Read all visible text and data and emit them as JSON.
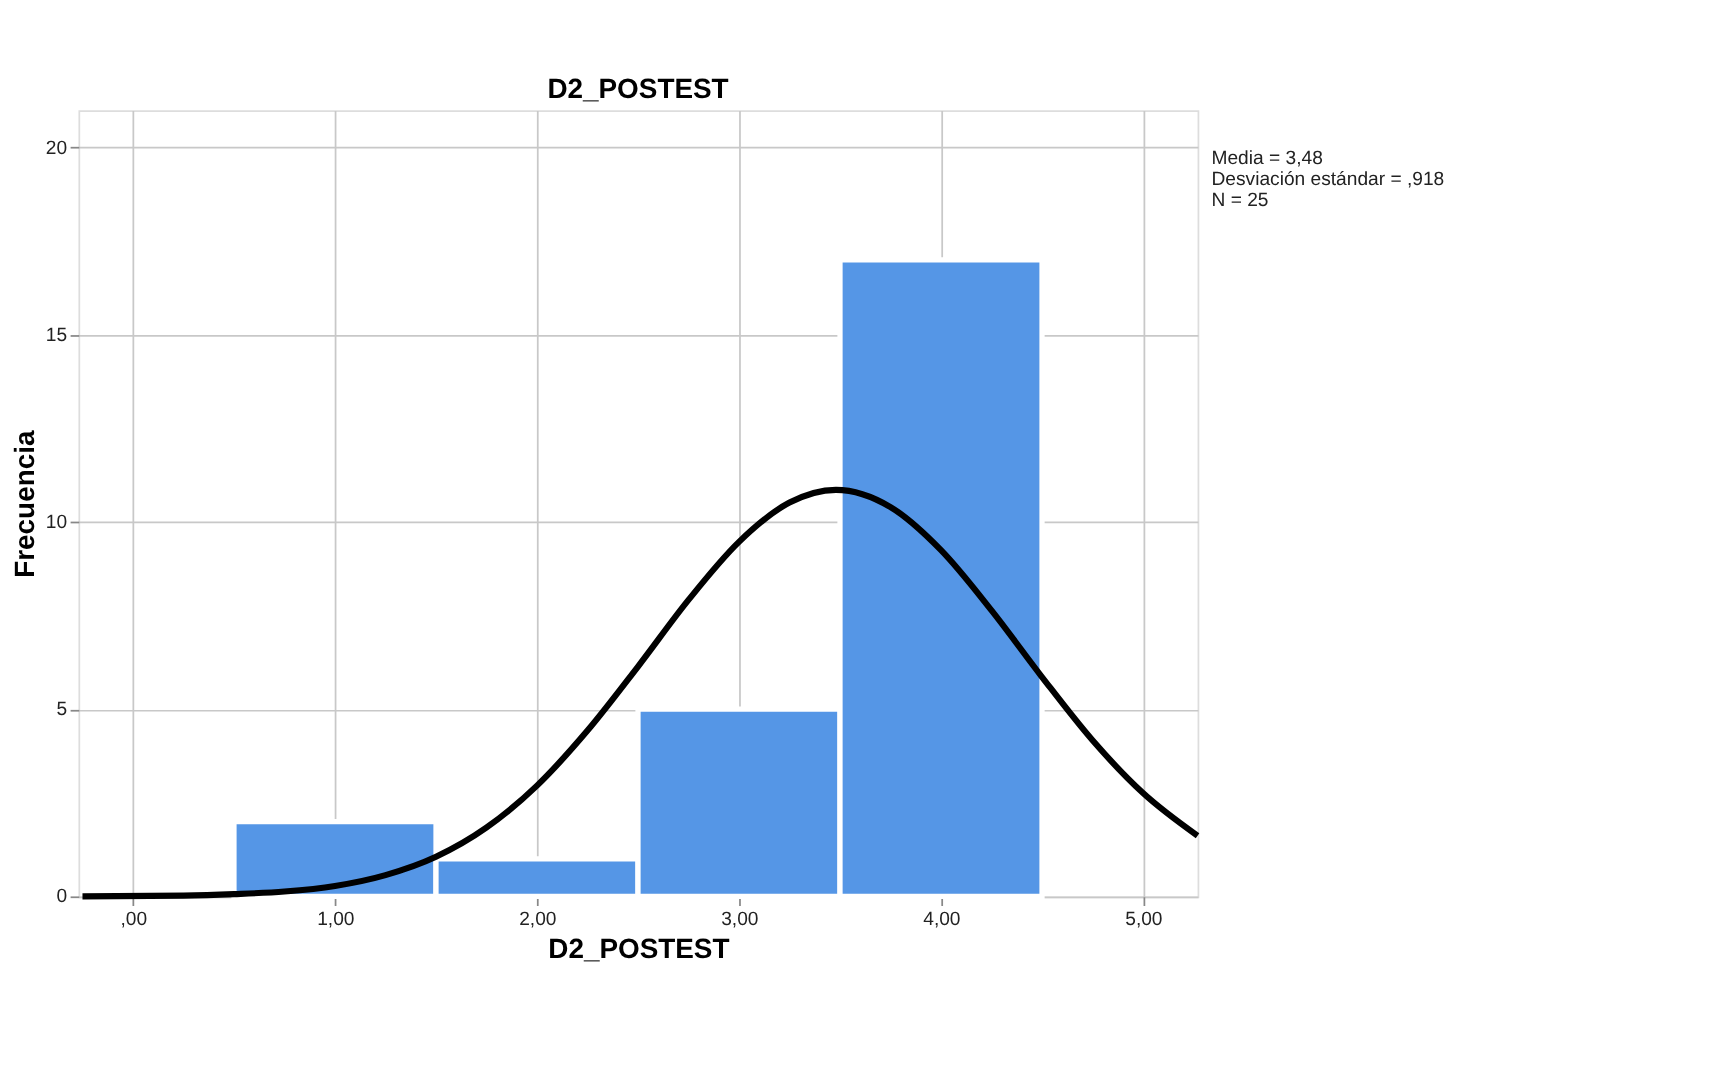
{
  "chart_data": {
    "type": "histogram",
    "title": "D2_POSTEST",
    "xlabel": "D2_POSTEST",
    "ylabel": "Frecuencia",
    "bins": [
      0.5,
      1.5,
      2.5,
      3.5,
      4.5
    ],
    "values": [
      2,
      1,
      5,
      17
    ],
    "color": "#5596e6",
    "series": [
      {
        "type": "line",
        "color": "#000000",
        "x": [
          -0.25,
          0.25,
          0.5,
          0.75,
          1.0,
          1.25,
          1.5,
          1.75,
          2.0,
          2.25,
          2.5,
          2.75,
          3.0,
          3.25,
          3.48,
          3.75,
          4.0,
          4.25,
          4.5,
          4.75,
          5.0,
          5.27
        ],
        "values": [
          0.0,
          0.02,
          0.06,
          0.13,
          0.28,
          0.57,
          1.06,
          1.84,
          2.96,
          4.43,
          6.14,
          7.92,
          9.47,
          10.52,
          10.86,
          10.4,
          9.25,
          7.64,
          5.86,
          4.17,
          2.76,
          1.62
        ]
      }
    ],
    "xlim": [
      -0.27,
      5.27
    ],
    "ylim": [
      0,
      21
    ],
    "xticks": [
      {
        "value": 0,
        "label": ",00"
      },
      {
        "value": 1,
        "label": "1,00"
      },
      {
        "value": 2,
        "label": "2,00"
      },
      {
        "value": 3,
        "label": "3,00"
      },
      {
        "value": 4,
        "label": "4,00"
      },
      {
        "value": 5,
        "label": "5,00"
      }
    ],
    "yticks": [
      0,
      5,
      10,
      15,
      20
    ],
    "grid": true,
    "line_style": "solid",
    "annotations": [
      "Media = 3,48",
      "Desviación estándar = ,918",
      "N = 25"
    ]
  }
}
